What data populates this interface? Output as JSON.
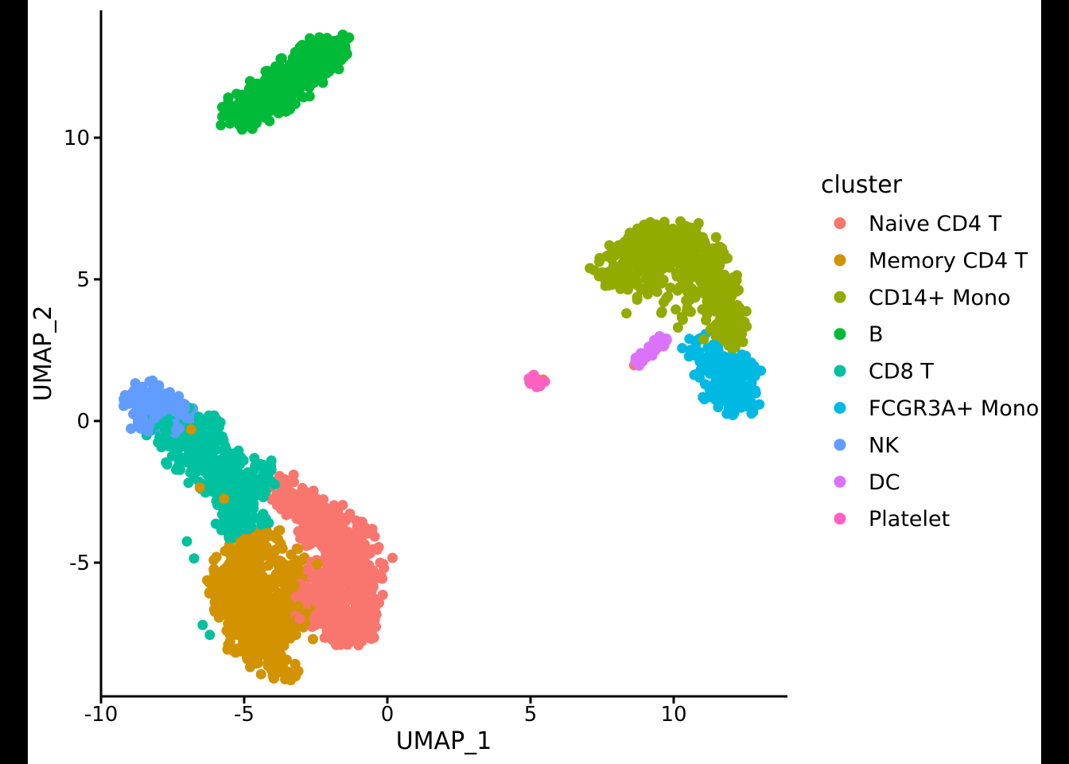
{
  "figure": {
    "background_color": "#FFFFFF",
    "letterbox_color": "#000000",
    "axis_color": "#000000",
    "text_color": "#000000"
  },
  "legend": {
    "title": "cluster"
  },
  "chart_data": {
    "type": "scatter",
    "title": "",
    "xlabel": "UMAP_1",
    "ylabel": "UMAP_2",
    "xlim": [
      -10.0,
      14.0
    ],
    "ylim": [
      -9.7,
      14.5
    ],
    "grid": false,
    "legend_position": "right",
    "x_ticks": [
      -10,
      -5,
      0,
      5,
      10
    ],
    "x_tick_labels": [
      "-10",
      "-5",
      "0",
      "5",
      "10"
    ],
    "y_ticks": [
      -5,
      0,
      5,
      10
    ],
    "y_tick_labels": [
      "-5",
      "0",
      "5",
      "10"
    ],
    "point_radius_px": 6.5,
    "blob_format": [
      "center_x",
      "center_y",
      "sigma_x",
      "sigma_y",
      "n_points",
      "rotation_deg"
    ],
    "series": [
      {
        "name": "Naive CD4 T",
        "color": "#F8766D",
        "blobs": [
          [
            -3.35,
            -2.65,
            0.42,
            0.36,
            50,
            -35
          ],
          [
            -2.6,
            -3.35,
            0.55,
            0.45,
            85,
            -30
          ],
          [
            -1.8,
            -4.15,
            0.65,
            0.55,
            115,
            0
          ],
          [
            -1.2,
            -5.15,
            0.65,
            0.62,
            130,
            0
          ],
          [
            -1.95,
            -5.9,
            0.6,
            0.55,
            100,
            0
          ],
          [
            -0.95,
            -6.35,
            0.5,
            0.5,
            90,
            0
          ],
          [
            -1.75,
            -7.05,
            0.5,
            0.45,
            70,
            0
          ],
          [
            -2.5,
            -6.55,
            0.4,
            0.45,
            50,
            0
          ],
          [
            -0.95,
            -7.45,
            0.38,
            0.3,
            35,
            20
          ]
        ],
        "back_points": [
          [
            8.62,
            1.97
          ],
          [
            5.08,
            1.6
          ]
        ],
        "front_points": []
      },
      {
        "name": "Memory CD4 T",
        "color": "#D39200",
        "blobs": [
          [
            -4.45,
            -4.35,
            0.45,
            0.38,
            55,
            0
          ],
          [
            -5.1,
            -5.15,
            0.55,
            0.45,
            80,
            0
          ],
          [
            -5.6,
            -6.15,
            0.5,
            0.55,
            85,
            0
          ],
          [
            -4.6,
            -6.15,
            0.6,
            0.55,
            100,
            0
          ],
          [
            -4.0,
            -7.0,
            0.55,
            0.5,
            90,
            0
          ],
          [
            -4.9,
            -7.35,
            0.45,
            0.45,
            70,
            0
          ],
          [
            -4.3,
            -8.2,
            0.4,
            0.38,
            55,
            0
          ],
          [
            -3.65,
            -8.75,
            0.3,
            0.28,
            25,
            0
          ],
          [
            -3.35,
            -6.4,
            0.35,
            0.5,
            45,
            0
          ],
          [
            -3.5,
            -5.2,
            0.35,
            0.4,
            40,
            0
          ]
        ],
        "back_points": [
          [
            5.44,
            1.46
          ]
        ],
        "front_points": [
          [
            -6.55,
            -2.35
          ],
          [
            -5.7,
            -2.75
          ],
          [
            -2.45,
            -5.05
          ],
          [
            -2.6,
            -7.7
          ],
          [
            -6.85,
            -0.3
          ]
        ]
      },
      {
        "name": "CD14+ Mono",
        "color": "#93AA00",
        "blobs": [
          [
            8.15,
            5.3,
            0.5,
            0.42,
            65,
            0
          ],
          [
            8.9,
            5.95,
            0.55,
            0.48,
            100,
            0
          ],
          [
            9.8,
            6.25,
            0.6,
            0.45,
            115,
            0
          ],
          [
            10.75,
            5.9,
            0.5,
            0.5,
            100,
            0
          ],
          [
            11.4,
            5.0,
            0.42,
            0.5,
            85,
            0
          ],
          [
            11.75,
            4.0,
            0.38,
            0.45,
            70,
            0
          ],
          [
            11.95,
            3.15,
            0.33,
            0.35,
            45,
            0
          ],
          [
            9.35,
            4.9,
            0.5,
            0.45,
            28,
            0
          ],
          [
            10.35,
            4.35,
            0.45,
            0.4,
            18,
            0
          ]
        ],
        "back_points": [],
        "front_points": [
          [
            10.15,
            3.3
          ],
          [
            10.32,
            3.58
          ],
          [
            8.35,
            3.8
          ],
          [
            12.15,
            2.6
          ],
          [
            11.05,
            2.88
          ],
          [
            12.3,
            2.95
          ]
        ]
      },
      {
        "name": "B",
        "color": "#00BA38",
        "blobs": [
          [
            -4.95,
            11.0,
            0.5,
            0.36,
            55,
            35
          ],
          [
            -4.4,
            11.4,
            0.58,
            0.4,
            75,
            35
          ],
          [
            -3.8,
            11.8,
            0.62,
            0.42,
            85,
            35
          ],
          [
            -3.2,
            12.2,
            0.62,
            0.42,
            85,
            35
          ],
          [
            -2.65,
            12.6,
            0.55,
            0.4,
            70,
            35
          ],
          [
            -2.1,
            12.95,
            0.45,
            0.33,
            50,
            35
          ],
          [
            -5.2,
            10.7,
            0.25,
            0.2,
            18,
            35
          ],
          [
            -1.7,
            13.1,
            0.25,
            0.2,
            15,
            35
          ]
        ],
        "back_points": [],
        "front_points": []
      },
      {
        "name": "CD8 T",
        "color": "#00C19F",
        "blobs": [
          [
            -7.55,
            -0.15,
            0.5,
            0.35,
            55,
            0
          ],
          [
            -6.9,
            -0.85,
            0.5,
            0.45,
            70,
            0
          ],
          [
            -6.2,
            -1.55,
            0.55,
            0.5,
            85,
            0
          ],
          [
            -5.6,
            -2.3,
            0.5,
            0.5,
            80,
            0
          ],
          [
            -4.95,
            -3.0,
            0.48,
            0.45,
            70,
            0
          ],
          [
            -4.4,
            -2.0,
            0.4,
            0.35,
            35,
            0
          ],
          [
            -5.3,
            -3.65,
            0.35,
            0.35,
            30,
            0
          ],
          [
            -6.1,
            -0.2,
            0.3,
            0.3,
            25,
            0
          ]
        ],
        "back_points": [
          [
            4.97,
            1.36
          ]
        ],
        "front_points": [
          [
            -6.45,
            -7.2
          ],
          [
            -6.2,
            -7.55
          ],
          [
            -7.0,
            -4.25
          ],
          [
            -6.75,
            -4.85
          ],
          [
            -4.05,
            -1.4
          ]
        ]
      },
      {
        "name": "FCGR3A+ Mono",
        "color": "#00B9E3",
        "blobs": [
          [
            11.85,
            1.3,
            0.5,
            0.45,
            100,
            0
          ],
          [
            12.25,
            0.7,
            0.35,
            0.3,
            45,
            0
          ],
          [
            11.45,
            2.0,
            0.4,
            0.35,
            45,
            0
          ],
          [
            10.95,
            2.55,
            0.3,
            0.25,
            15,
            0
          ],
          [
            12.45,
            1.9,
            0.28,
            0.3,
            25,
            0
          ]
        ],
        "back_points": [],
        "front_points": [
          [
            10.55,
            2.9
          ],
          [
            10.78,
            2.3
          ]
        ]
      },
      {
        "name": "NK",
        "color": "#619CFF",
        "blobs": [
          [
            -8.3,
            0.75,
            0.45,
            0.32,
            70,
            0
          ],
          [
            -7.9,
            0.3,
            0.5,
            0.35,
            85,
            0
          ],
          [
            -7.4,
            0.2,
            0.35,
            0.3,
            40,
            0
          ],
          [
            -8.55,
            0.15,
            0.3,
            0.25,
            25,
            0
          ]
        ],
        "back_points": [],
        "front_points": [
          [
            -7.0,
            0.1
          ]
        ]
      },
      {
        "name": "DC",
        "color": "#DB72FB",
        "blobs": [
          [
            8.72,
            2.06,
            0.1,
            0.09,
            7,
            0
          ],
          [
            8.9,
            2.22,
            0.1,
            0.09,
            8,
            0
          ],
          [
            9.08,
            2.38,
            0.1,
            0.09,
            8,
            0
          ],
          [
            9.26,
            2.54,
            0.1,
            0.09,
            8,
            0
          ],
          [
            9.44,
            2.68,
            0.11,
            0.1,
            9,
            0
          ],
          [
            9.6,
            2.82,
            0.13,
            0.11,
            12,
            0
          ]
        ],
        "back_points": [],
        "front_points": []
      },
      {
        "name": "Platelet",
        "color": "#FF61C3",
        "blobs": [
          [
            5.22,
            1.45,
            0.14,
            0.12,
            14,
            0
          ]
        ],
        "back_points": [],
        "front_points": []
      }
    ]
  }
}
